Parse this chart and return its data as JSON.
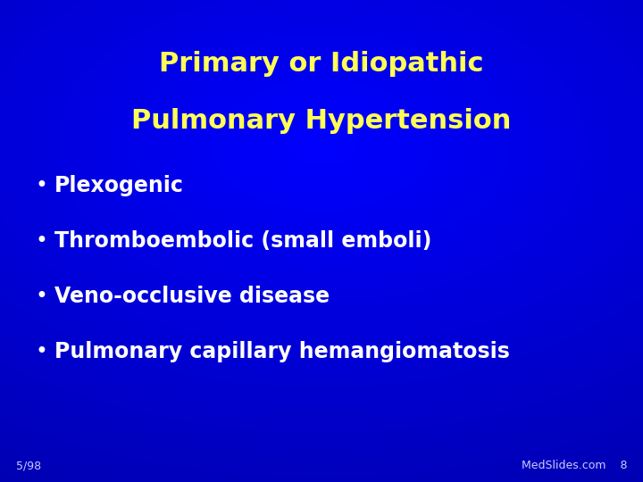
{
  "title_line1": "Primary or Idiopathic",
  "title_line2": "Pulmonary Hypertension",
  "title_color": "#FFFF55",
  "bullet_color": "#FFFFFF",
  "bullet_items": [
    "Plexogenic",
    "Thromboembolic (small emboli)",
    "Veno-occlusive disease",
    "Pulmonary capillary hemangiomatosis"
  ],
  "footer_left": "5/98",
  "footer_right": "MedSlides.com    8",
  "footer_color": "#CCCCFF",
  "title_fontsize": 22,
  "bullet_fontsize": 17,
  "footer_fontsize": 9,
  "bg_color_topleft": "#000088",
  "bg_color_bottomright": "#0000DD"
}
